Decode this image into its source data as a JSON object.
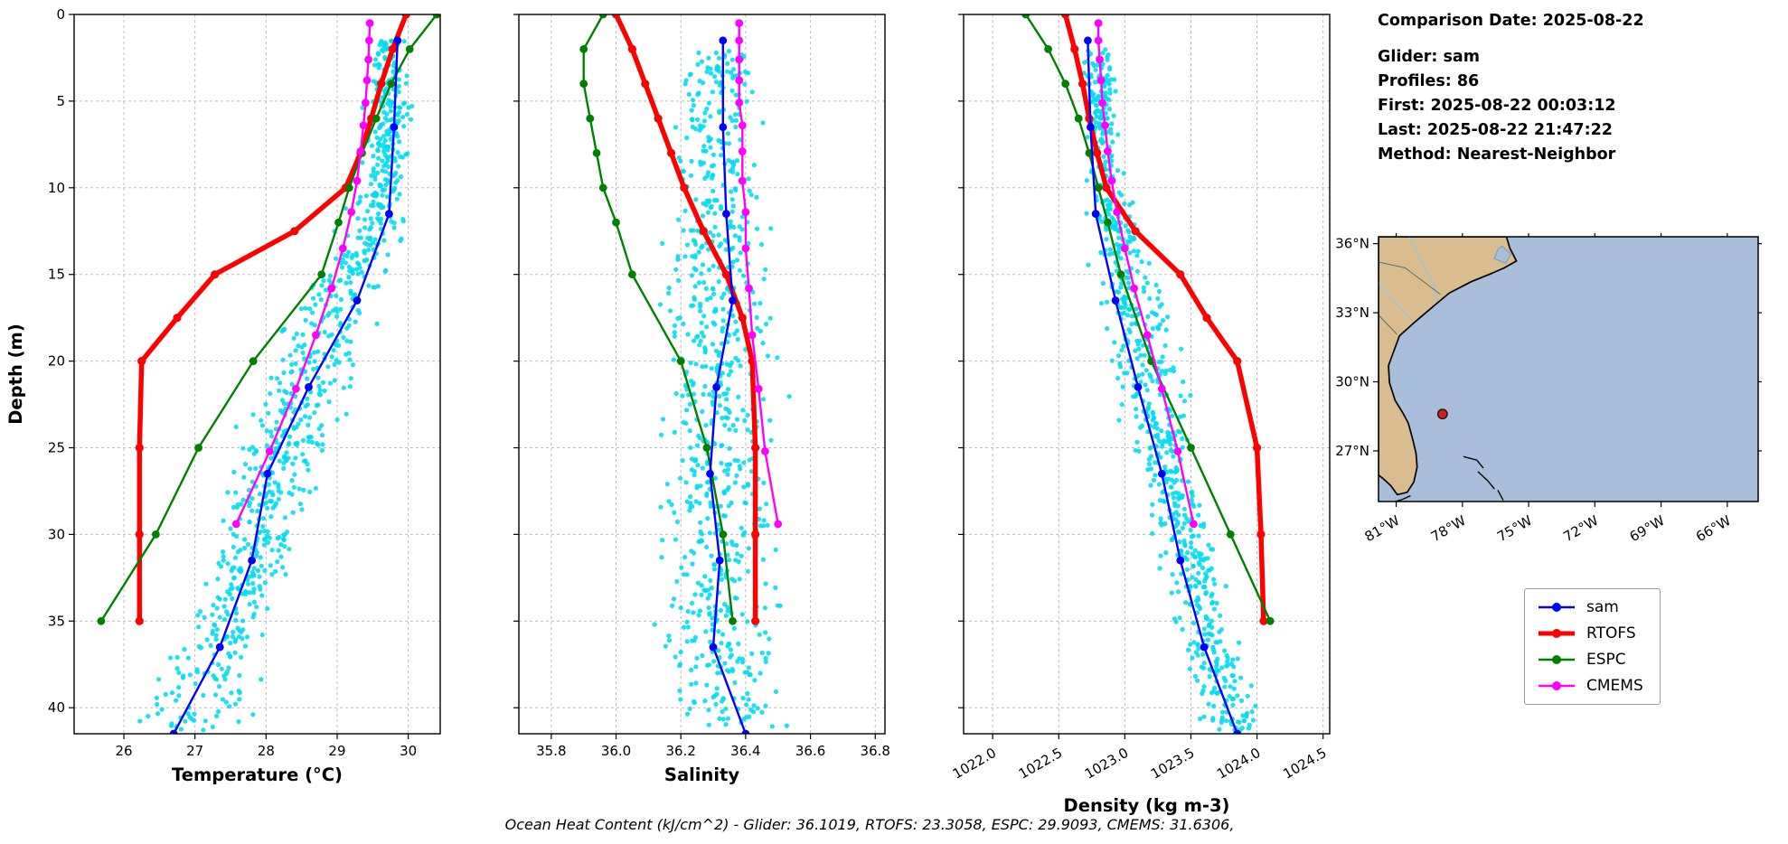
{
  "info_panel": {
    "comparison_date": "Comparison Date: 2025-08-22",
    "glider": "Glider: sam",
    "profiles": "Profiles: 86",
    "first": "First: 2025-08-22 00:03:12",
    "last": "Last: 2025-08-22 21:47:22",
    "method": "Method: Nearest-Neighbor"
  },
  "footer": "Ocean Heat Content (kJ/cm^2) - Glider: 36.1019,  RTOFS: 23.3058,  ESPC: 29.9093,  CMEMS: 31.6306,",
  "legend": {
    "entries": [
      {
        "label": "sam",
        "color": "#0000ff"
      },
      {
        "label": "RTOFS",
        "color": "#ff0000"
      },
      {
        "label": "ESPC",
        "color": "#008000"
      },
      {
        "label": "CMEMS",
        "color": "#ff00ff"
      }
    ]
  },
  "colors": {
    "sam": "#0000ff",
    "RTOFS": "#ff0000",
    "ESPC": "#008000",
    "CMEMS": "#ff00ff",
    "glider_scatter": "#00dcee",
    "grid": "#bdbdbd"
  },
  "chart_data": [
    {
      "name": "temperature",
      "type": "scatter",
      "xlabel": "Temperature (°C)",
      "ylabel": "Depth (m)",
      "xlim": [
        25.3,
        30.45
      ],
      "ylim": [
        0,
        41.5
      ],
      "xticks": [
        26,
        27,
        28,
        29,
        30
      ],
      "xtick_labels": [
        "26",
        "27",
        "28",
        "29",
        "30"
      ],
      "yticks": [
        0,
        5,
        10,
        15,
        20,
        25,
        30,
        35,
        40
      ],
      "ytick_labels": [
        "0",
        "5",
        "10",
        "15",
        "20",
        "25",
        "30",
        "35",
        "40"
      ],
      "grid": true,
      "series": [
        {
          "name": "sam",
          "depths": [
            1.5,
            6.5,
            11.5,
            16.5,
            21.5,
            26.5,
            31.5,
            36.5,
            41.5
          ],
          "values": [
            29.85,
            29.8,
            29.73,
            29.28,
            28.6,
            28.02,
            27.8,
            27.35,
            26.7
          ]
        },
        {
          "name": "RTOFS",
          "depths": [
            0,
            2,
            4,
            6,
            8,
            10,
            12.5,
            15,
            17.5,
            20,
            25,
            30,
            35
          ],
          "values": [
            29.97,
            29.78,
            29.62,
            29.48,
            29.33,
            29.12,
            28.4,
            27.28,
            26.75,
            26.25,
            26.22,
            26.22,
            26.22
          ]
        },
        {
          "name": "ESPC",
          "depths": [
            0,
            2,
            4,
            6,
            8,
            10,
            12,
            15,
            20,
            25,
            30,
            35
          ],
          "values": [
            30.4,
            30.02,
            29.76,
            29.55,
            29.35,
            29.17,
            29.02,
            28.78,
            27.82,
            27.05,
            26.45,
            25.68
          ]
        },
        {
          "name": "CMEMS",
          "depths": [
            0.5,
            1.5,
            2.6,
            3.8,
            5.1,
            6.4,
            7.9,
            9.6,
            11.4,
            13.5,
            15.8,
            18.5,
            21.6,
            25.2,
            29.4
          ],
          "values": [
            29.46,
            29.45,
            29.44,
            29.42,
            29.4,
            29.37,
            29.33,
            29.28,
            29.2,
            29.08,
            28.92,
            28.7,
            28.42,
            28.05,
            27.58
          ]
        }
      ],
      "glider_scatter": {
        "count": 850,
        "depth_range": [
          1.5,
          41.3
        ],
        "envelope": [
          [
            2,
            29.72,
            0.14
          ],
          [
            5,
            29.72,
            0.16
          ],
          [
            10,
            29.65,
            0.2
          ],
          [
            14,
            29.3,
            0.28
          ],
          [
            18,
            28.85,
            0.38
          ],
          [
            22,
            28.5,
            0.4
          ],
          [
            26,
            28.15,
            0.35
          ],
          [
            30,
            27.9,
            0.3
          ],
          [
            34,
            27.6,
            0.32
          ],
          [
            38,
            27.25,
            0.4
          ],
          [
            41.3,
            27.0,
            0.5
          ]
        ]
      }
    },
    {
      "name": "salinity",
      "type": "scatter",
      "xlabel": "Salinity",
      "xlim": [
        35.7,
        36.83
      ],
      "ylim": [
        0,
        41.5
      ],
      "xticks": [
        35.8,
        36.0,
        36.2,
        36.4,
        36.6,
        36.8
      ],
      "xtick_labels": [
        "35.8",
        "36.0",
        "36.2",
        "36.4",
        "36.6",
        "36.8"
      ],
      "yticks": [
        0,
        5,
        10,
        15,
        20,
        25,
        30,
        35,
        40
      ],
      "grid": true,
      "series": [
        {
          "name": "sam",
          "depths": [
            1.5,
            6.5,
            11.5,
            16.5,
            21.5,
            26.5,
            31.5,
            36.5,
            41.5
          ],
          "values": [
            36.33,
            36.33,
            36.34,
            36.36,
            36.31,
            36.29,
            36.32,
            36.3,
            36.4
          ]
        },
        {
          "name": "RTOFS",
          "depths": [
            0,
            2,
            4,
            6,
            8,
            10,
            12.5,
            15,
            17.5,
            20,
            25,
            30,
            35
          ],
          "values": [
            36.0,
            36.05,
            36.09,
            36.13,
            36.17,
            36.21,
            36.27,
            36.34,
            36.39,
            36.42,
            36.43,
            36.43,
            36.43
          ]
        },
        {
          "name": "ESPC",
          "depths": [
            0,
            2,
            4,
            6,
            8,
            10,
            12,
            15,
            20,
            25,
            30,
            35
          ],
          "values": [
            35.96,
            35.9,
            35.9,
            35.92,
            35.94,
            35.96,
            36.0,
            36.05,
            36.2,
            36.28,
            36.33,
            36.36
          ]
        },
        {
          "name": "CMEMS",
          "depths": [
            0.5,
            1.5,
            2.6,
            3.8,
            5.1,
            6.4,
            7.9,
            9.6,
            11.4,
            13.5,
            15.8,
            18.5,
            21.6,
            25.2,
            29.4
          ],
          "values": [
            36.38,
            36.38,
            36.38,
            36.38,
            36.38,
            36.39,
            36.39,
            36.39,
            36.4,
            36.4,
            36.41,
            36.42,
            36.44,
            36.46,
            36.5
          ]
        }
      ],
      "glider_scatter": {
        "count": 750,
        "depth_range": [
          2,
          41.3
        ],
        "envelope": [
          [
            2,
            36.33,
            0.05
          ],
          [
            6,
            36.32,
            0.07
          ],
          [
            10,
            36.32,
            0.08
          ],
          [
            15,
            36.32,
            0.09
          ],
          [
            20,
            36.32,
            0.1
          ],
          [
            25,
            36.3,
            0.1
          ],
          [
            30,
            36.32,
            0.09
          ],
          [
            35,
            36.3,
            0.1
          ],
          [
            41.3,
            36.38,
            0.09
          ]
        ]
      }
    },
    {
      "name": "density",
      "type": "scatter",
      "xlabel": "Density (kg m-3)",
      "xlim": [
        1021.78,
        1024.55
      ],
      "ylim": [
        0,
        41.5
      ],
      "xticks": [
        1022.0,
        1022.5,
        1023.0,
        1023.5,
        1024.0,
        1024.5
      ],
      "xtick_labels": [
        "1022.0",
        "1022.5",
        "1023.0",
        "1023.5",
        "1024.0",
        "1024.5"
      ],
      "xtick_rotation": 30,
      "yticks": [
        0,
        5,
        10,
        15,
        20,
        25,
        30,
        35,
        40
      ],
      "grid": true,
      "series": [
        {
          "name": "sam",
          "depths": [
            1.5,
            6.5,
            11.5,
            16.5,
            21.5,
            26.5,
            31.5,
            36.5,
            41.5
          ],
          "values": [
            1022.72,
            1022.74,
            1022.78,
            1022.93,
            1023.1,
            1023.28,
            1023.42,
            1023.6,
            1023.85
          ]
        },
        {
          "name": "RTOFS",
          "depths": [
            0,
            2,
            4,
            6,
            8,
            10,
            12.5,
            15,
            17.5,
            20,
            25,
            30,
            35
          ],
          "values": [
            1022.55,
            1022.62,
            1022.68,
            1022.73,
            1022.79,
            1022.86,
            1023.08,
            1023.42,
            1023.62,
            1023.85,
            1024.0,
            1024.03,
            1024.05
          ]
        },
        {
          "name": "ESPC",
          "depths": [
            0,
            2,
            4,
            6,
            8,
            10,
            12,
            15,
            20,
            25,
            30,
            35
          ],
          "values": [
            1022.25,
            1022.42,
            1022.55,
            1022.65,
            1022.73,
            1022.8,
            1022.87,
            1022.97,
            1023.2,
            1023.5,
            1023.8,
            1024.1
          ]
        },
        {
          "name": "CMEMS",
          "depths": [
            0.5,
            1.5,
            2.6,
            3.8,
            5.1,
            6.4,
            7.9,
            9.6,
            11.4,
            13.5,
            15.8,
            18.5,
            21.6,
            25.2,
            29.4
          ],
          "values": [
            1022.8,
            1022.8,
            1022.81,
            1022.82,
            1022.83,
            1022.85,
            1022.87,
            1022.9,
            1022.94,
            1023.0,
            1023.07,
            1023.17,
            1023.28,
            1023.4,
            1023.52
          ]
        }
      ],
      "glider_scatter": {
        "count": 780,
        "depth_range": [
          2,
          41.3
        ],
        "envelope": [
          [
            2,
            1022.8,
            0.06
          ],
          [
            6,
            1022.82,
            0.07
          ],
          [
            10,
            1022.87,
            0.09
          ],
          [
            15,
            1023.0,
            0.12
          ],
          [
            20,
            1023.14,
            0.15
          ],
          [
            25,
            1023.3,
            0.13
          ],
          [
            30,
            1023.45,
            0.12
          ],
          [
            35,
            1023.6,
            0.12
          ],
          [
            41.3,
            1023.85,
            0.14
          ]
        ]
      }
    }
  ],
  "map": {
    "lon_ticks": [
      -81,
      -78,
      -75,
      -72,
      -69,
      -66
    ],
    "lon_tick_labels": [
      "81°W",
      "78°W",
      "75°W",
      "72°W",
      "69°W",
      "66°W"
    ],
    "lat_ticks": [
      36,
      33,
      30,
      27
    ],
    "lat_tick_labels": [
      "36°N",
      "33°N",
      "30°N",
      "27°N"
    ],
    "extent": {
      "lon_min": -81.8,
      "lon_max": -64.6,
      "lat_min": 24.8,
      "lat_max": 36.3
    },
    "glider_marker": {
      "lon": -78.9,
      "lat": 28.6
    },
    "colors": {
      "land": "#d9bd8e",
      "ocean": "#a9bedb",
      "coast": "#000000",
      "marker": "#cc2222"
    },
    "coastline": [
      [
        -81.8,
        36.3
      ],
      [
        -76.0,
        36.3
      ],
      [
        -75.85,
        35.8
      ],
      [
        -75.55,
        35.25
      ],
      [
        -76.1,
        34.95
      ],
      [
        -76.7,
        34.7
      ],
      [
        -77.6,
        34.35
      ],
      [
        -78.6,
        33.85
      ],
      [
        -79.35,
        33.25
      ],
      [
        -80.15,
        32.6
      ],
      [
        -80.85,
        32.0
      ],
      [
        -81.1,
        31.35
      ],
      [
        -81.35,
        30.7
      ],
      [
        -81.3,
        29.95
      ],
      [
        -81.05,
        29.2
      ],
      [
        -80.7,
        28.65
      ],
      [
        -80.45,
        28.2
      ],
      [
        -80.25,
        27.5
      ],
      [
        -80.1,
        26.9
      ],
      [
        -80.05,
        26.3
      ],
      [
        -80.2,
        25.65
      ],
      [
        -80.5,
        25.2
      ],
      [
        -80.95,
        25.1
      ],
      [
        -81.25,
        25.5
      ],
      [
        -81.6,
        25.8
      ],
      [
        -81.8,
        25.95
      ]
    ],
    "islands": [
      [
        [
          -77.95,
          26.75
        ],
        [
          -77.35,
          26.6
        ],
        [
          -77.05,
          26.25
        ]
      ],
      [
        [
          -77.3,
          26.1
        ],
        [
          -76.85,
          25.7
        ],
        [
          -76.55,
          25.35
        ]
      ],
      [
        [
          -76.4,
          25.3
        ],
        [
          -76.15,
          24.85
        ]
      ],
      [
        [
          -80.35,
          25.05
        ],
        [
          -80.75,
          24.88
        ],
        [
          -81.15,
          24.78
        ]
      ]
    ],
    "borders": [
      [
        [
          -81.8,
          35.2
        ],
        [
          -80.6,
          34.95
        ],
        [
          -79.55,
          34.2
        ],
        [
          -79.0,
          33.8
        ]
      ],
      [
        [
          -81.8,
          32.9
        ],
        [
          -81.3,
          32.4
        ],
        [
          -80.95,
          32.05
        ]
      ]
    ],
    "rivers": [
      [
        [
          -80.4,
          36.3
        ],
        [
          -79.9,
          35.3
        ],
        [
          -79.3,
          34.3
        ],
        [
          -79.2,
          33.5
        ]
      ],
      [
        [
          -81.8,
          34.3
        ],
        [
          -81.0,
          33.4
        ],
        [
          -80.3,
          32.7
        ]
      ]
    ],
    "sound": [
      [
        -76.2,
        35.9
      ],
      [
        -75.8,
        35.55
      ],
      [
        -76.05,
        35.15
      ],
      [
        -76.55,
        35.35
      ],
      [
        -76.4,
        35.75
      ]
    ]
  }
}
